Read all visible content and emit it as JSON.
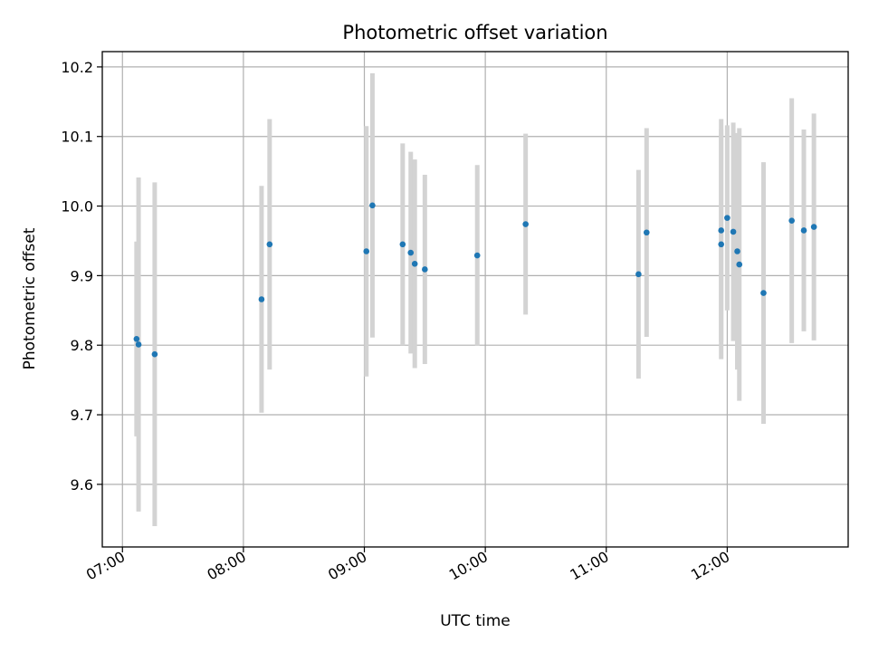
{
  "chart_data": {
    "type": "scatter",
    "title": "Photometric offset variation",
    "xlabel": "UTC time",
    "ylabel": "Photometric offset",
    "xlim": [
      "06:50",
      "13:00"
    ],
    "ylim": [
      9.51,
      10.222
    ],
    "x_ticks": [
      "07:00",
      "08:00",
      "09:00",
      "10:00",
      "11:00",
      "12:00"
    ],
    "y_ticks": [
      "9.6",
      "9.7",
      "9.8",
      "9.9",
      "10.0",
      "10.1",
      "10.2"
    ],
    "grid": true,
    "colors": {
      "point": "#1f77b4",
      "errorbar": "#d3d3d3",
      "grid": "#b0b0b0"
    },
    "points": [
      {
        "time": "07:07",
        "y": 9.809,
        "err": 0.14
      },
      {
        "time": "07:08",
        "y": 9.801,
        "err": 0.24
      },
      {
        "time": "07:16",
        "y": 9.787,
        "err": 0.247
      },
      {
        "time": "08:09",
        "y": 9.866,
        "err": 0.163
      },
      {
        "time": "08:13",
        "y": 9.945,
        "err": 0.18
      },
      {
        "time": "09:01",
        "y": 9.935,
        "err": 0.18
      },
      {
        "time": "09:04",
        "y": 10.001,
        "err": 0.19
      },
      {
        "time": "09:19",
        "y": 9.945,
        "err": 0.145
      },
      {
        "time": "09:23",
        "y": 9.933,
        "err": 0.145
      },
      {
        "time": "09:25",
        "y": 9.917,
        "err": 0.15
      },
      {
        "time": "09:30",
        "y": 9.909,
        "err": 0.136
      },
      {
        "time": "09:56",
        "y": 9.929,
        "err": 0.13
      },
      {
        "time": "10:20",
        "y": 9.974,
        "err": 0.13
      },
      {
        "time": "11:16",
        "y": 9.902,
        "err": 0.15
      },
      {
        "time": "11:20",
        "y": 9.962,
        "err": 0.15
      },
      {
        "time": "11:57",
        "y": 9.965,
        "err": 0.16
      },
      {
        "time": "11:57",
        "y": 9.945,
        "err": 0.165
      },
      {
        "time": "12:00",
        "y": 9.983,
        "err": 0.133
      },
      {
        "time": "12:03",
        "y": 9.963,
        "err": 0.157
      },
      {
        "time": "12:05",
        "y": 9.935,
        "err": 0.17
      },
      {
        "time": "12:06",
        "y": 9.916,
        "err": 0.196
      },
      {
        "time": "12:18",
        "y": 9.875,
        "err": 0.188
      },
      {
        "time": "12:32",
        "y": 9.979,
        "err": 0.176
      },
      {
        "time": "12:38",
        "y": 9.965,
        "err": 0.145
      },
      {
        "time": "12:43",
        "y": 9.97,
        "err": 0.163
      }
    ]
  }
}
